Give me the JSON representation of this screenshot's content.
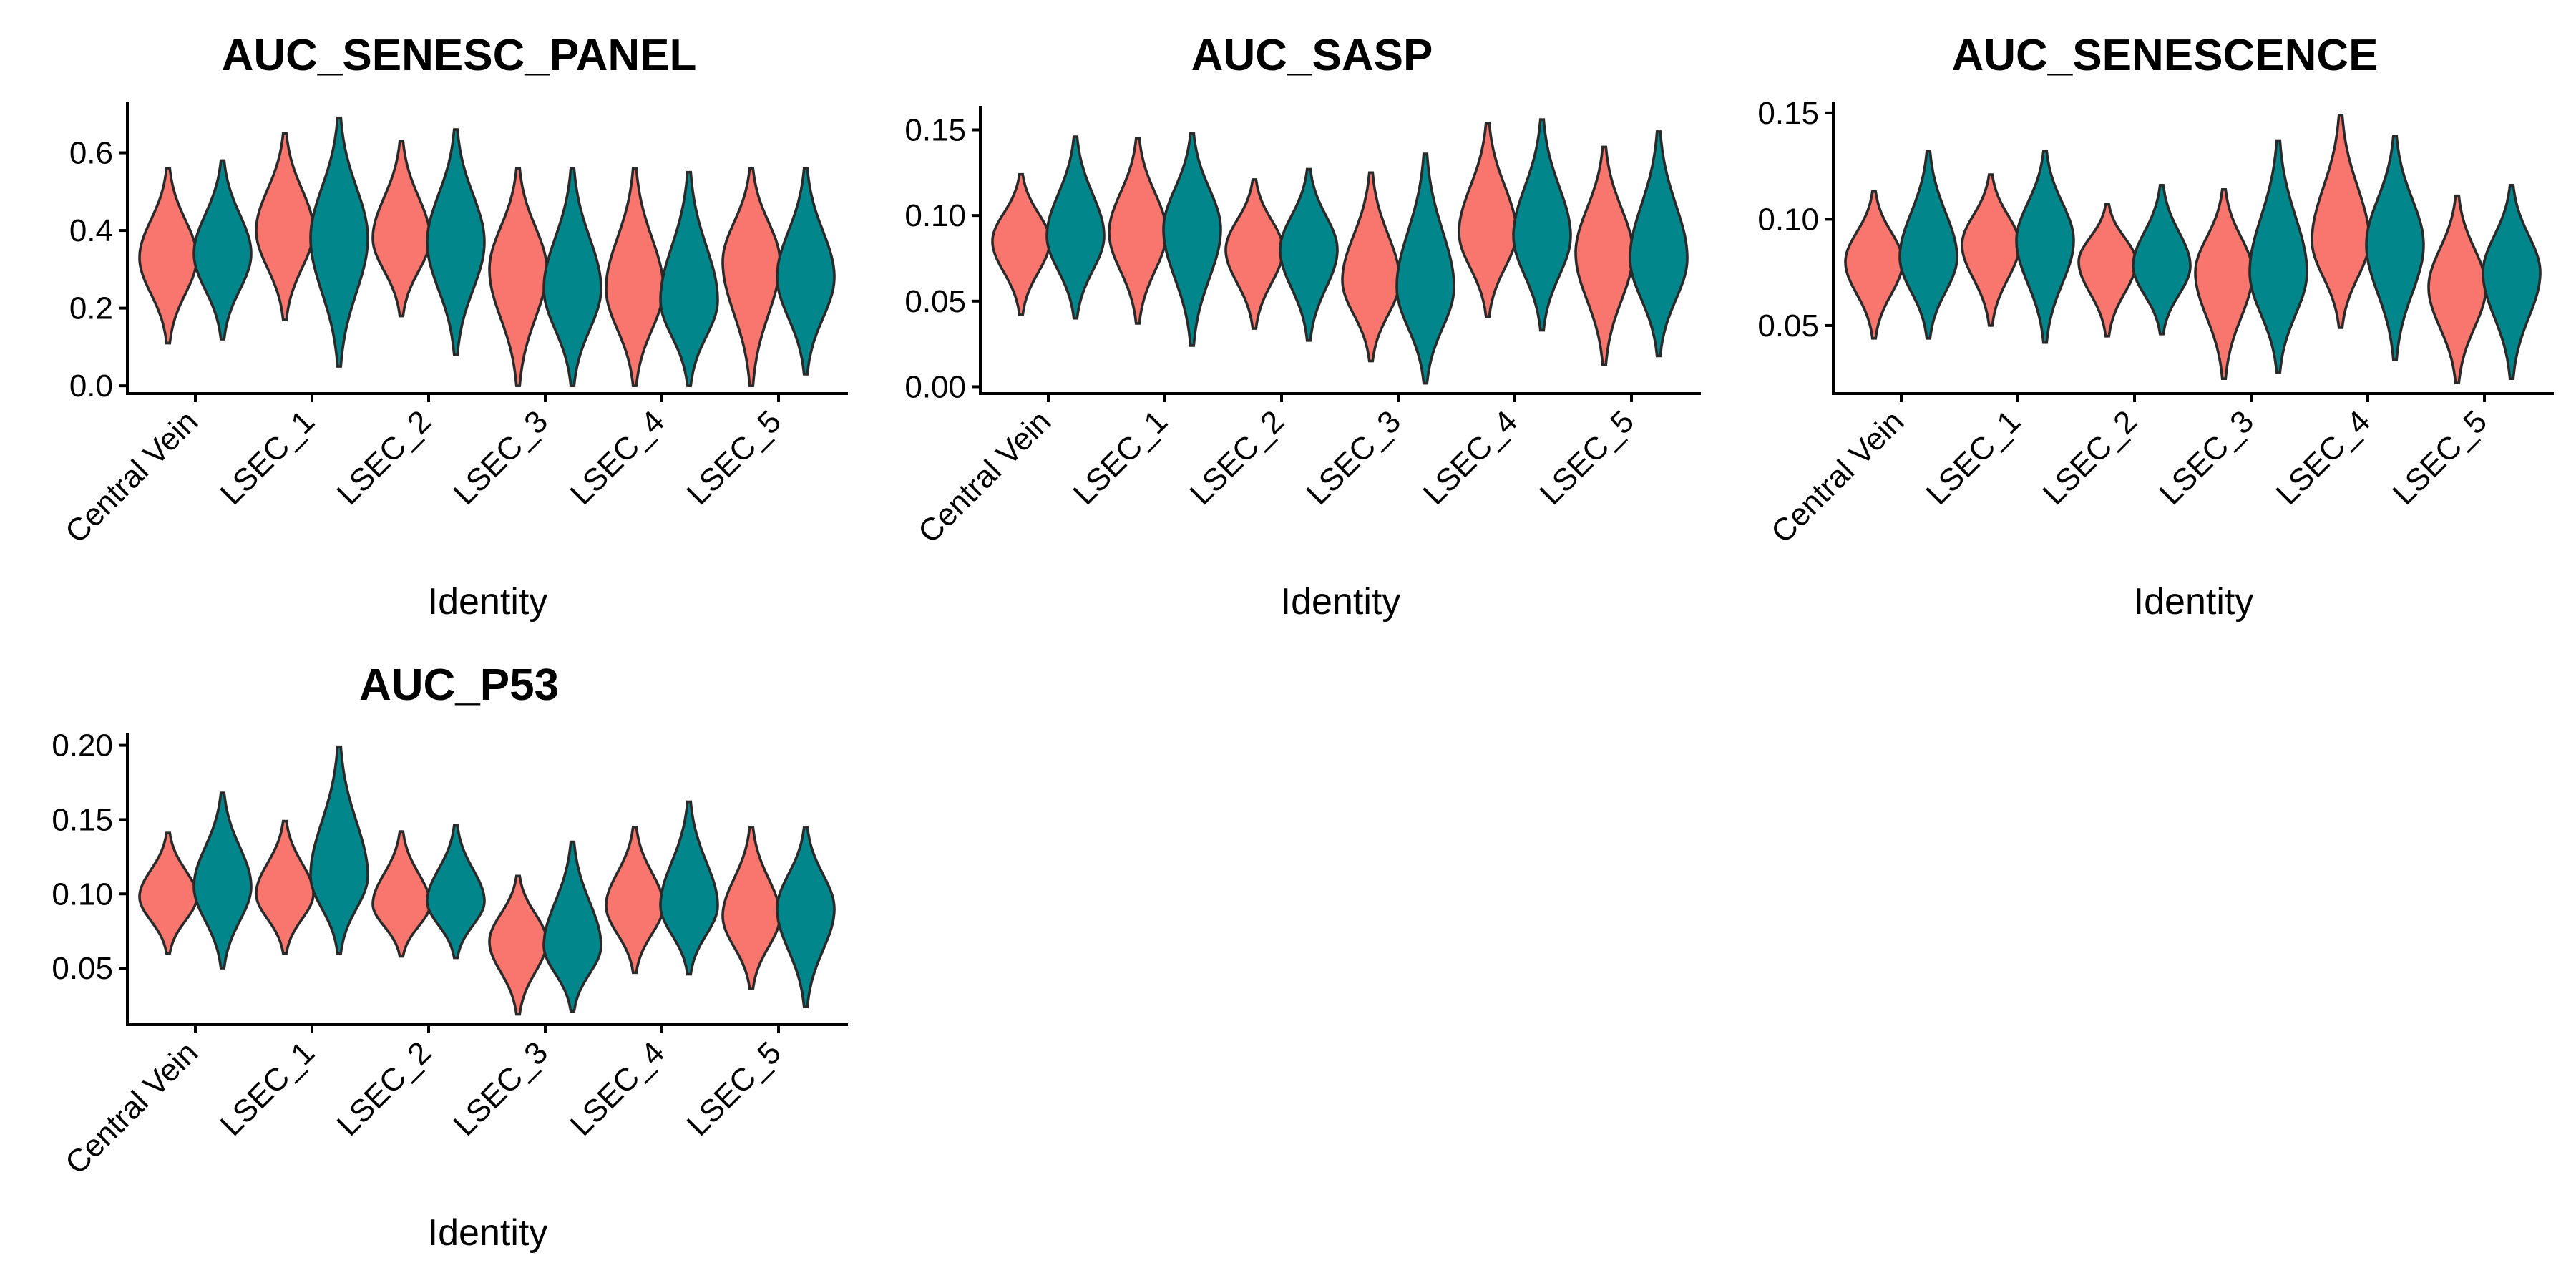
{
  "colors": {
    "group_a": "#F8766D",
    "group_b": "#00868B"
  },
  "chart_data": [
    {
      "type": "violin",
      "title": "AUC_SENESC_PANEL",
      "xlabel": "Identity",
      "ylabel": "",
      "categories": [
        "Central Vein",
        "LSEC_1",
        "LSEC_2",
        "LSEC_3",
        "LSEC_4",
        "LSEC_5"
      ],
      "ylim": [
        -0.02,
        0.73
      ],
      "yticks": [
        "0.0",
        "0.2",
        "0.4",
        "0.6"
      ],
      "ytick_values": [
        0.0,
        0.2,
        0.4,
        0.6
      ],
      "series": [
        {
          "color": "#F8766D",
          "violins": [
            {
              "min": 0.11,
              "max": 0.56,
              "mode": 0.33
            },
            {
              "min": 0.17,
              "max": 0.65,
              "mode": 0.4
            },
            {
              "min": 0.18,
              "max": 0.63,
              "mode": 0.38
            },
            {
              "min": 0.0,
              "max": 0.56,
              "mode": 0.3
            },
            {
              "min": 0.0,
              "max": 0.56,
              "mode": 0.25
            },
            {
              "min": 0.0,
              "max": 0.56,
              "mode": 0.32
            }
          ]
        },
        {
          "color": "#00868B",
          "violins": [
            {
              "min": 0.12,
              "max": 0.58,
              "mode": 0.34
            },
            {
              "min": 0.05,
              "max": 0.69,
              "mode": 0.38
            },
            {
              "min": 0.08,
              "max": 0.66,
              "mode": 0.37
            },
            {
              "min": 0.0,
              "max": 0.56,
              "mode": 0.25
            },
            {
              "min": 0.0,
              "max": 0.55,
              "mode": 0.22
            },
            {
              "min": 0.03,
              "max": 0.56,
              "mode": 0.28
            }
          ]
        }
      ]
    },
    {
      "type": "violin",
      "title": "AUC_SASP",
      "xlabel": "Identity",
      "ylabel": "",
      "categories": [
        "Central Vein",
        "LSEC_1",
        "LSEC_2",
        "LSEC_3",
        "LSEC_4",
        "LSEC_5"
      ],
      "ylim": [
        -0.004,
        0.164
      ],
      "yticks": [
        "0.00",
        "0.05",
        "0.10",
        "0.15"
      ],
      "ytick_values": [
        0.0,
        0.05,
        0.1,
        0.15
      ],
      "series": [
        {
          "color": "#F8766D",
          "violins": [
            {
              "min": 0.042,
              "max": 0.124,
              "mode": 0.085
            },
            {
              "min": 0.037,
              "max": 0.145,
              "mode": 0.09
            },
            {
              "min": 0.034,
              "max": 0.121,
              "mode": 0.08
            },
            {
              "min": 0.015,
              "max": 0.125,
              "mode": 0.062
            },
            {
              "min": 0.041,
              "max": 0.154,
              "mode": 0.09
            },
            {
              "min": 0.013,
              "max": 0.14,
              "mode": 0.078
            }
          ]
        },
        {
          "color": "#00868B",
          "violins": [
            {
              "min": 0.04,
              "max": 0.146,
              "mode": 0.088
            },
            {
              "min": 0.024,
              "max": 0.148,
              "mode": 0.092
            },
            {
              "min": 0.027,
              "max": 0.127,
              "mode": 0.08
            },
            {
              "min": 0.002,
              "max": 0.136,
              "mode": 0.058
            },
            {
              "min": 0.033,
              "max": 0.156,
              "mode": 0.088
            },
            {
              "min": 0.018,
              "max": 0.149,
              "mode": 0.075
            }
          ]
        }
      ]
    },
    {
      "type": "violin",
      "title": "AUC_SENESCENCE",
      "xlabel": "Identity",
      "ylabel": "",
      "categories": [
        "Central Vein",
        "LSEC_1",
        "LSEC_2",
        "LSEC_3",
        "LSEC_4",
        "LSEC_5"
      ],
      "ylim": [
        0.018,
        0.155
      ],
      "yticks": [
        "0.05",
        "0.10",
        "0.15"
      ],
      "ytick_values": [
        0.05,
        0.1,
        0.15
      ],
      "series": [
        {
          "color": "#F8766D",
          "violins": [
            {
              "min": 0.044,
              "max": 0.113,
              "mode": 0.08
            },
            {
              "min": 0.05,
              "max": 0.121,
              "mode": 0.088
            },
            {
              "min": 0.045,
              "max": 0.107,
              "mode": 0.08
            },
            {
              "min": 0.025,
              "max": 0.114,
              "mode": 0.075
            },
            {
              "min": 0.049,
              "max": 0.149,
              "mode": 0.09
            },
            {
              "min": 0.023,
              "max": 0.111,
              "mode": 0.068
            }
          ]
        },
        {
          "color": "#00868B",
          "violins": [
            {
              "min": 0.044,
              "max": 0.132,
              "mode": 0.082
            },
            {
              "min": 0.042,
              "max": 0.132,
              "mode": 0.09
            },
            {
              "min": 0.046,
              "max": 0.116,
              "mode": 0.078
            },
            {
              "min": 0.028,
              "max": 0.137,
              "mode": 0.075
            },
            {
              "min": 0.034,
              "max": 0.139,
              "mode": 0.088
            },
            {
              "min": 0.025,
              "max": 0.116,
              "mode": 0.075
            }
          ]
        }
      ]
    },
    {
      "type": "violin",
      "title": "AUC_P53",
      "xlabel": "Identity",
      "ylabel": "",
      "categories": [
        "Central Vein",
        "LSEC_1",
        "LSEC_2",
        "LSEC_3",
        "LSEC_4",
        "LSEC_5"
      ],
      "ylim": [
        0.012,
        0.208
      ],
      "yticks": [
        "0.05",
        "0.10",
        "0.15",
        "0.20"
      ],
      "ytick_values": [
        0.05,
        0.1,
        0.15,
        0.2
      ],
      "series": [
        {
          "color": "#F8766D",
          "violins": [
            {
              "min": 0.06,
              "max": 0.141,
              "mode": 0.098
            },
            {
              "min": 0.06,
              "max": 0.149,
              "mode": 0.1
            },
            {
              "min": 0.058,
              "max": 0.142,
              "mode": 0.093
            },
            {
              "min": 0.019,
              "max": 0.112,
              "mode": 0.068
            },
            {
              "min": 0.047,
              "max": 0.145,
              "mode": 0.092
            },
            {
              "min": 0.036,
              "max": 0.145,
              "mode": 0.085
            }
          ]
        },
        {
          "color": "#00868B",
          "violins": [
            {
              "min": 0.05,
              "max": 0.168,
              "mode": 0.105
            },
            {
              "min": 0.06,
              "max": 0.199,
              "mode": 0.112
            },
            {
              "min": 0.057,
              "max": 0.146,
              "mode": 0.095
            },
            {
              "min": 0.021,
              "max": 0.135,
              "mode": 0.065
            },
            {
              "min": 0.046,
              "max": 0.162,
              "mode": 0.092
            },
            {
              "min": 0.024,
              "max": 0.145,
              "mode": 0.09
            }
          ]
        }
      ]
    }
  ]
}
